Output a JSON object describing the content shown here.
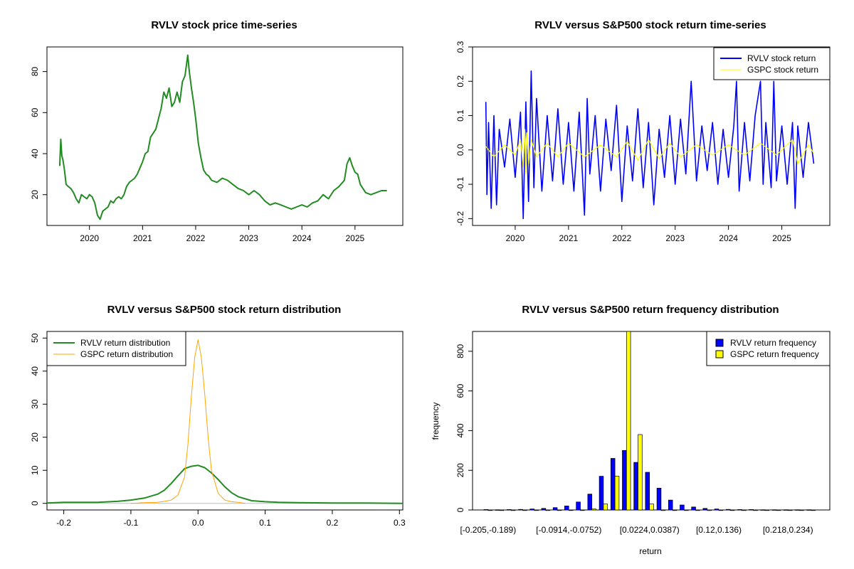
{
  "colors": {
    "price": "#228B22",
    "rvlv_ts": "#0000FF",
    "gspc_ts": "#FFFF00",
    "rvlv_density": "#228B22",
    "gspc_density": "#FFA500",
    "rvlv_bar": "#0000FF",
    "gspc_bar": "#FFFF00"
  },
  "chart_data": [
    {
      "type": "line",
      "title": "RVLV stock price time-series",
      "xlabel": "",
      "ylabel": "",
      "x_ticks": [
        "2020",
        "2021",
        "2022",
        "2023",
        "2024",
        "2025"
      ],
      "y_ticks": [
        "20",
        "40",
        "60",
        "80"
      ],
      "xlim": [
        2019.2,
        2025.9
      ],
      "ylim": [
        5,
        92
      ],
      "series": [
        {
          "name": "RVLV price",
          "x": [
            2019.44,
            2019.46,
            2019.48,
            2019.5,
            2019.53,
            2019.56,
            2019.6,
            2019.65,
            2019.7,
            2019.75,
            2019.8,
            2019.85,
            2019.9,
            2019.95,
            2020.0,
            2020.05,
            2020.1,
            2020.15,
            2020.2,
            2020.25,
            2020.3,
            2020.35,
            2020.4,
            2020.45,
            2020.5,
            2020.55,
            2020.6,
            2020.65,
            2020.7,
            2020.75,
            2020.8,
            2020.85,
            2020.9,
            2020.95,
            2021.0,
            2021.05,
            2021.1,
            2021.15,
            2021.2,
            2021.25,
            2021.3,
            2021.35,
            2021.4,
            2021.45,
            2021.5,
            2021.55,
            2021.6,
            2021.65,
            2021.7,
            2021.75,
            2021.8,
            2021.85,
            2021.88,
            2021.92,
            2021.96,
            2022.0,
            2022.05,
            2022.1,
            2022.15,
            2022.2,
            2022.25,
            2022.3,
            2022.4,
            2022.5,
            2022.6,
            2022.7,
            2022.8,
            2022.9,
            2023.0,
            2023.1,
            2023.2,
            2023.3,
            2023.4,
            2023.5,
            2023.6,
            2023.7,
            2023.8,
            2023.9,
            2024.0,
            2024.1,
            2024.2,
            2024.3,
            2024.4,
            2024.5,
            2024.6,
            2024.7,
            2024.8,
            2024.85,
            2024.9,
            2024.95,
            2025.0,
            2025.05,
            2025.1,
            2025.15,
            2025.2,
            2025.3,
            2025.4,
            2025.5,
            2025.6
          ],
          "values": [
            34,
            47,
            39,
            37,
            32,
            25,
            24,
            23,
            21,
            18,
            16,
            20,
            19,
            18,
            20,
            19,
            16,
            10,
            8,
            12,
            13,
            14,
            17,
            16,
            18,
            19,
            18,
            20,
            24,
            26,
            27,
            28,
            30,
            33,
            36,
            40,
            41,
            48,
            50,
            52,
            57,
            62,
            70,
            67,
            72,
            63,
            65,
            70,
            65,
            75,
            78,
            88,
            80,
            72,
            65,
            57,
            45,
            38,
            32,
            30,
            29,
            27,
            26,
            28,
            27,
            25,
            23,
            22,
            20,
            22,
            20,
            17,
            15,
            16,
            15,
            14,
            13,
            14,
            15,
            14,
            16,
            17,
            20,
            18,
            22,
            24,
            27,
            35,
            38,
            34,
            31,
            30,
            25,
            23,
            21,
            20,
            21,
            22,
            22
          ]
        }
      ]
    },
    {
      "type": "line",
      "title": "RVLV versus S&P500 stock return time-series",
      "xlabel": "",
      "ylabel": "",
      "x_ticks": [
        "2020",
        "2021",
        "2022",
        "2023",
        "2024",
        "2025"
      ],
      "y_ticks": [
        "-0.2",
        "-0.1",
        "0.0",
        "0.1",
        "0.2",
        "0.3"
      ],
      "xlim": [
        2019.2,
        2025.9
      ],
      "ylim": [
        -0.22,
        0.3
      ],
      "legend": [
        "RVLV stock return",
        "GSPC stock return"
      ],
      "legend_position": "top-right",
      "series": [
        {
          "name": "RVLV stock return",
          "x": [
            2019.45,
            2019.47,
            2019.5,
            2019.55,
            2019.6,
            2019.65,
            2019.7,
            2019.8,
            2019.9,
            2020.0,
            2020.1,
            2020.15,
            2020.2,
            2020.25,
            2020.3,
            2020.35,
            2020.4,
            2020.5,
            2020.6,
            2020.7,
            2020.8,
            2020.9,
            2021.0,
            2021.1,
            2021.2,
            2021.3,
            2021.35,
            2021.4,
            2021.5,
            2021.6,
            2021.7,
            2021.8,
            2021.9,
            2022.0,
            2022.1,
            2022.2,
            2022.3,
            2022.4,
            2022.5,
            2022.6,
            2022.7,
            2022.8,
            2022.9,
            2023.0,
            2023.1,
            2023.2,
            2023.3,
            2023.4,
            2023.5,
            2023.6,
            2023.7,
            2023.8,
            2023.9,
            2024.0,
            2024.1,
            2024.15,
            2024.2,
            2024.3,
            2024.4,
            2024.5,
            2024.6,
            2024.65,
            2024.7,
            2024.8,
            2024.85,
            2024.9,
            2025.0,
            2025.1,
            2025.2,
            2025.25,
            2025.3,
            2025.4,
            2025.5,
            2025.6
          ],
          "values": [
            0.14,
            -0.13,
            0.08,
            -0.17,
            0.1,
            -0.16,
            0.06,
            -0.05,
            0.09,
            -0.08,
            0.11,
            -0.2,
            0.14,
            -0.15,
            0.23,
            -0.11,
            0.15,
            -0.12,
            0.1,
            -0.09,
            0.12,
            -0.1,
            0.08,
            -0.12,
            0.11,
            -0.19,
            0.15,
            -0.07,
            0.1,
            -0.12,
            0.09,
            -0.06,
            0.13,
            -0.15,
            0.07,
            -0.09,
            0.12,
            -0.11,
            0.08,
            -0.16,
            0.06,
            -0.08,
            0.1,
            -0.1,
            0.09,
            -0.07,
            0.2,
            -0.09,
            0.07,
            -0.06,
            0.08,
            -0.1,
            0.06,
            -0.08,
            0.07,
            0.2,
            -0.12,
            0.08,
            -0.09,
            0.1,
            0.2,
            -0.1,
            0.08,
            -0.11,
            0.2,
            -0.09,
            0.07,
            -0.1,
            0.08,
            -0.17,
            0.07,
            -0.08,
            0.08,
            -0.04
          ]
        },
        {
          "name": "GSPC stock return",
          "x": [
            2019.45,
            2019.6,
            2019.8,
            2020.0,
            2020.1,
            2020.15,
            2020.18,
            2020.2,
            2020.22,
            2020.25,
            2020.3,
            2020.4,
            2020.6,
            2020.8,
            2021.0,
            2021.3,
            2021.6,
            2021.9,
            2022.1,
            2022.3,
            2022.5,
            2022.7,
            2022.9,
            2023.1,
            2023.4,
            2023.7,
            2024.0,
            2024.3,
            2024.6,
            2024.9,
            2025.2,
            2025.3,
            2025.5,
            2025.6
          ],
          "values": [
            0.01,
            -0.02,
            0.015,
            -0.015,
            0.03,
            -0.05,
            0.06,
            -0.07,
            0.05,
            -0.04,
            0.03,
            -0.02,
            0.02,
            -0.02,
            0.02,
            -0.02,
            0.015,
            -0.02,
            0.025,
            -0.03,
            0.03,
            -0.025,
            0.02,
            -0.02,
            0.015,
            -0.015,
            0.015,
            -0.015,
            0.02,
            -0.015,
            0.03,
            -0.04,
            0.015,
            -0.01
          ]
        }
      ]
    },
    {
      "type": "line",
      "title": "RVLV versus S&P500 stock return distribution",
      "xlabel": "",
      "ylabel": "",
      "x_ticks": [
        "-0.2",
        "-0.1",
        "0.0",
        "0.1",
        "0.2",
        "0.3"
      ],
      "y_ticks": [
        "0",
        "10",
        "20",
        "30",
        "40",
        "50"
      ],
      "xlim": [
        -0.225,
        0.305
      ],
      "ylim": [
        -2,
        52
      ],
      "legend": [
        "RVLV return distribution",
        "GSPC return distribution"
      ],
      "legend_position": "top-left",
      "series": [
        {
          "name": "RVLV return distribution",
          "x": [
            -0.225,
            -0.2,
            -0.15,
            -0.12,
            -0.1,
            -0.08,
            -0.06,
            -0.05,
            -0.04,
            -0.03,
            -0.02,
            -0.01,
            0.0,
            0.01,
            0.02,
            0.03,
            0.04,
            0.05,
            0.06,
            0.08,
            0.1,
            0.12,
            0.15,
            0.2,
            0.25,
            0.305
          ],
          "values": [
            0.1,
            0.3,
            0.3,
            0.6,
            1.0,
            1.6,
            2.8,
            4.0,
            6.0,
            8.3,
            10.5,
            11.2,
            11.5,
            10.8,
            9.2,
            7.2,
            5.0,
            3.2,
            2.0,
            0.8,
            0.5,
            0.3,
            0.2,
            0.1,
            0.1,
            0.0
          ]
        },
        {
          "name": "GSPC return distribution",
          "x": [
            -0.1,
            -0.08,
            -0.06,
            -0.05,
            -0.04,
            -0.03,
            -0.02,
            -0.015,
            -0.01,
            -0.005,
            0.0,
            0.005,
            0.01,
            0.015,
            0.02,
            0.03,
            0.04,
            0.05,
            0.06,
            0.07
          ],
          "values": [
            0.0,
            0.2,
            0.3,
            0.6,
            1.0,
            2.5,
            8.0,
            18.0,
            32.0,
            44.0,
            49.5,
            44.0,
            33.0,
            20.0,
            10.0,
            3.0,
            1.0,
            0.5,
            0.3,
            0.0
          ]
        }
      ]
    },
    {
      "type": "bar",
      "title": "RVLV versus S&P500 return frequency distribution",
      "xlabel": "return",
      "ylabel": "frequency",
      "y_ticks": [
        "0",
        "200",
        "400",
        "600",
        "800"
      ],
      "ylim": [
        0,
        900
      ],
      "x_tick_labels": [
        "[-0.205,-0.189)",
        "[-0.0914,-0.0752)",
        "[0.0224,0.0387)",
        "[0.12,0.136)",
        "[0.218,0.234)"
      ],
      "x_tick_bins": [
        0,
        7,
        14,
        20,
        26
      ],
      "legend": [
        "RVLV return frequency",
        "GSPC return frequency"
      ],
      "legend_position": "top-right",
      "series": [
        {
          "name": "RVLV return frequency",
          "values": [
            2,
            1,
            2,
            3,
            5,
            8,
            12,
            20,
            40,
            80,
            170,
            260,
            300,
            240,
            190,
            110,
            50,
            25,
            15,
            8,
            5,
            3,
            2,
            2,
            1,
            1,
            1,
            1,
            1
          ]
        },
        {
          "name": "GSPC return frequency",
          "values": [
            0,
            0,
            0,
            0,
            0,
            0,
            0,
            0,
            0,
            5,
            30,
            170,
            930,
            380,
            30,
            0,
            0,
            0,
            0,
            0,
            0,
            0,
            0,
            0,
            0,
            0,
            0,
            0,
            0
          ]
        }
      ]
    }
  ]
}
